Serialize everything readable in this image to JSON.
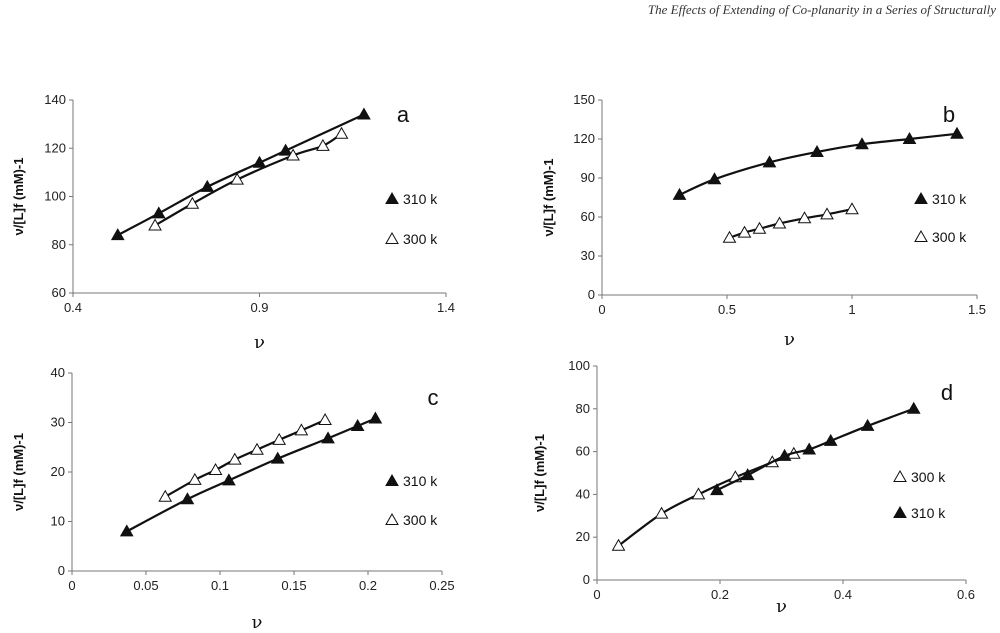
{
  "header": {
    "title": "The Effects of Extending of Co-planarity in a Series of Structurally"
  },
  "chart_data": [
    {
      "id": "a",
      "type": "scatter",
      "panel_label": "a",
      "xlabel": "ν",
      "ylabel": "ν/[L]f (mM)-1",
      "xlim": [
        0.4,
        1.4
      ],
      "ylim": [
        60,
        140
      ],
      "xticks": [
        0.4,
        0.9,
        1.4
      ],
      "yticks": [
        60,
        80,
        100,
        120,
        140
      ],
      "x_tick_labels": [
        "0.4",
        "0.9",
        "1.4"
      ],
      "y_tick_labels": [
        "60",
        "80",
        "100",
        "120",
        "140"
      ],
      "legend_position": "right",
      "series": [
        {
          "name": "310 k",
          "marker": "filled-triangle",
          "x": [
            0.52,
            0.63,
            0.76,
            0.9,
            0.97,
            1.18
          ],
          "y": [
            84,
            93,
            104,
            114,
            119,
            134
          ]
        },
        {
          "name": "300 k",
          "marker": "open-triangle",
          "x": [
            0.62,
            0.72,
            0.84,
            0.99,
            1.07,
            1.12
          ],
          "y": [
            88,
            97,
            107,
            117,
            121,
            126
          ]
        }
      ]
    },
    {
      "id": "b",
      "type": "scatter",
      "panel_label": "b",
      "xlabel": "ν",
      "ylabel": "ν/[L]f (mM)-1",
      "xlim": [
        0,
        1.5
      ],
      "ylim": [
        0,
        150
      ],
      "xticks": [
        0,
        0.5,
        1,
        1.5
      ],
      "yticks": [
        0,
        30,
        60,
        90,
        120,
        150
      ],
      "x_tick_labels": [
        "0",
        "0.5",
        "1",
        "1.5"
      ],
      "y_tick_labels": [
        "0",
        "30",
        "60",
        "90",
        "120",
        "150"
      ],
      "legend_position": "right",
      "series": [
        {
          "name": "310 k",
          "marker": "filled-triangle",
          "x": [
            0.31,
            0.45,
            0.67,
            0.86,
            1.04,
            1.23,
            1.42
          ],
          "y": [
            77,
            89,
            102,
            110,
            116,
            120,
            124
          ]
        },
        {
          "name": "300 k",
          "marker": "open-triangle",
          "x": [
            0.51,
            0.57,
            0.63,
            0.71,
            0.81,
            0.9,
            1.0
          ],
          "y": [
            44,
            48,
            51,
            55,
            59,
            62,
            66
          ]
        }
      ]
    },
    {
      "id": "c",
      "type": "scatter",
      "panel_label": "c",
      "xlabel": "ν",
      "ylabel": "ν/[L]f (mM)-1",
      "xlim": [
        0,
        0.25
      ],
      "ylim": [
        0,
        40
      ],
      "xticks": [
        0,
        0.05,
        0.1,
        0.15,
        0.2,
        0.25
      ],
      "yticks": [
        0,
        10,
        20,
        30,
        40
      ],
      "x_tick_labels": [
        "0",
        "0.05",
        "0.1",
        "0.15",
        "0.2",
        "0.25"
      ],
      "y_tick_labels": [
        "0",
        "10",
        "20",
        "30",
        "40"
      ],
      "legend_position": "right",
      "series": [
        {
          "name": "310 k",
          "marker": "filled-triangle",
          "x": [
            0.037,
            0.078,
            0.106,
            0.139,
            0.173,
            0.193,
            0.205
          ],
          "y": [
            8,
            14.5,
            18.3,
            22.7,
            26.8,
            29.3,
            30.8
          ]
        },
        {
          "name": "300 k",
          "marker": "open-triangle",
          "x": [
            0.063,
            0.083,
            0.097,
            0.11,
            0.125,
            0.14,
            0.155,
            0.171
          ],
          "y": [
            15,
            18.4,
            20.4,
            22.5,
            24.5,
            26.5,
            28.4,
            30.5
          ]
        }
      ]
    },
    {
      "id": "d",
      "type": "scatter",
      "panel_label": "d",
      "xlabel": "ν",
      "ylabel": "ν/[L]f (mM)-1",
      "xlim": [
        0,
        0.6
      ],
      "ylim": [
        0,
        100
      ],
      "xticks": [
        0,
        0.2,
        0.4,
        0.6
      ],
      "yticks": [
        0,
        20,
        40,
        60,
        80,
        100
      ],
      "x_tick_labels": [
        "0",
        "0.2",
        "0.4",
        "0.6"
      ],
      "y_tick_labels": [
        "0",
        "20",
        "40",
        "60",
        "80",
        "100"
      ],
      "legend_position": "right",
      "series": [
        {
          "name": "300 k",
          "marker": "open-triangle",
          "x": [
            0.035,
            0.105,
            0.165,
            0.225,
            0.285,
            0.32
          ],
          "y": [
            16,
            31,
            40,
            48,
            55,
            59
          ]
        },
        {
          "name": "310 k",
          "marker": "filled-triangle",
          "x": [
            0.195,
            0.245,
            0.305,
            0.345,
            0.38,
            0.44,
            0.515
          ],
          "y": [
            42,
            49,
            58,
            61,
            65,
            72,
            80
          ]
        }
      ]
    }
  ]
}
